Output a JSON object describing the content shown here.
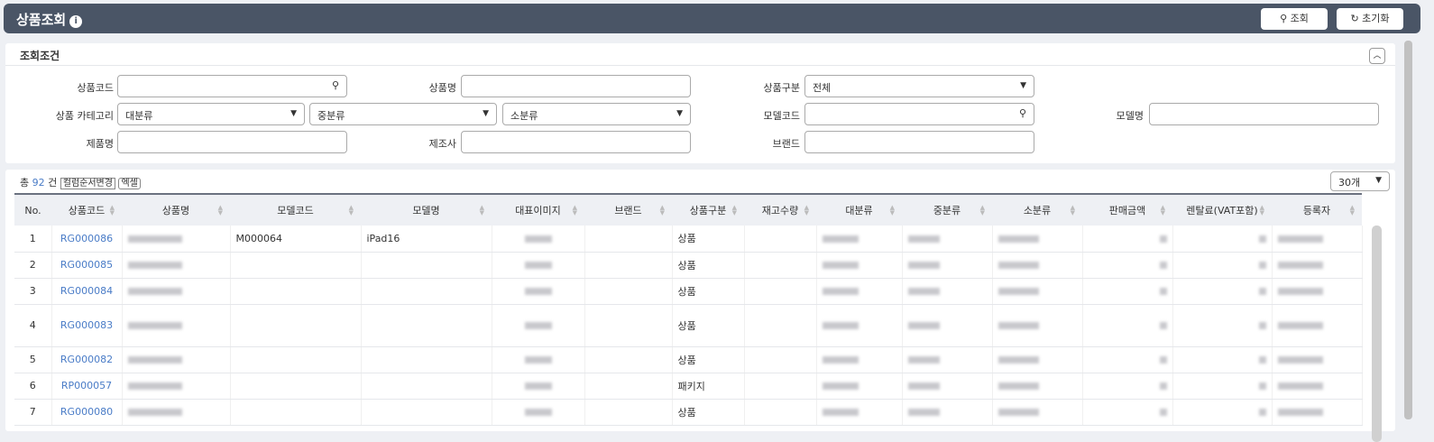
{
  "header": {
    "title": "상품조회",
    "search_label": "조회",
    "reset_label": "초기화"
  },
  "conditions": {
    "title": "조회조건",
    "labels": {
      "product_code": "상품코드",
      "product_name": "상품명",
      "product_type": "상품구분",
      "category": "상품 카테고리",
      "model_code": "모델코드",
      "model_name": "모델명",
      "item_name": "제품명",
      "manufacturer": "제조사",
      "brand": "브랜드"
    },
    "values": {
      "product_type": "전체",
      "large": "대분류",
      "medium": "중분류",
      "small": "소분류"
    }
  },
  "list": {
    "total_prefix": "총",
    "total": "92",
    "total_suffix": "건",
    "column_order_label": "컬럼순서변경",
    "excel_label": "엑셀",
    "page_size": "30개",
    "columns": [
      "No.",
      "상품코드",
      "상품명",
      "모델코드",
      "모델명",
      "대표이미지",
      "브랜드",
      "상품구분",
      "재고수량",
      "대분류",
      "중분류",
      "소분류",
      "판매금액",
      "렌탈료(VAT포함)",
      "등록자"
    ],
    "rows": [
      {
        "no": "1",
        "code": "RG000086",
        "model_code": "M000064",
        "model_name": "iPad16",
        "type": "상품"
      },
      {
        "no": "2",
        "code": "RG000085",
        "model_code": "",
        "model_name": "",
        "type": "상품"
      },
      {
        "no": "3",
        "code": "RG000084",
        "model_code": "",
        "model_name": "",
        "type": "상품"
      },
      {
        "no": "4",
        "code": "RG000083",
        "model_code": "",
        "model_name": "",
        "type": "상품"
      },
      {
        "no": "5",
        "code": "RG000082",
        "model_code": "",
        "model_name": "",
        "type": "상품"
      },
      {
        "no": "6",
        "code": "RP000057",
        "model_code": "",
        "model_name": "",
        "type": "패키지"
      },
      {
        "no": "7",
        "code": "RG000080",
        "model_code": "",
        "model_name": "",
        "type": "상품"
      }
    ]
  }
}
